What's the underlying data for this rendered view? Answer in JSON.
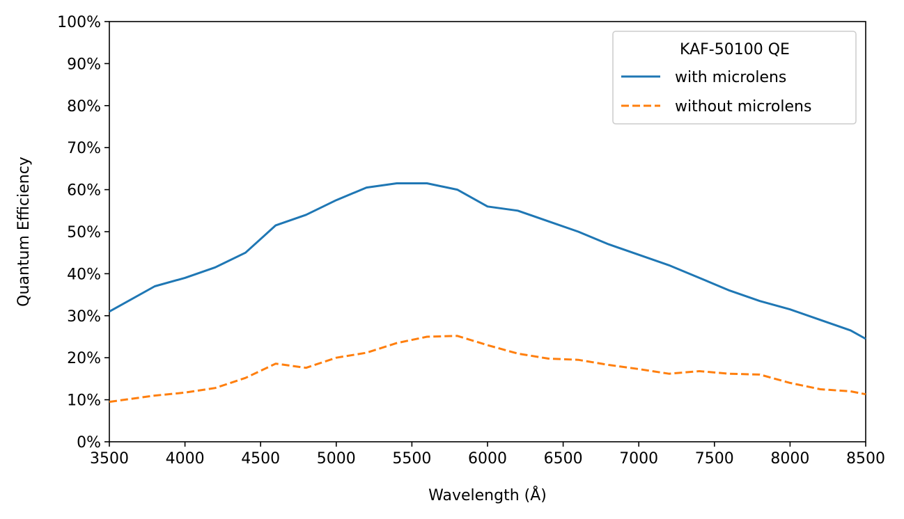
{
  "chart_data": {
    "type": "line",
    "xlabel": "Wavelength (Å)",
    "ylabel": "Quantum Efficiency",
    "xlim": [
      3500,
      8500
    ],
    "ylim": [
      0,
      1
    ],
    "xticks": [
      3500,
      4000,
      4500,
      5000,
      5500,
      6000,
      6500,
      7000,
      7500,
      8000,
      8500
    ],
    "yticks": [
      0,
      0.1,
      0.2,
      0.3,
      0.4,
      0.5,
      0.6,
      0.7,
      0.8,
      0.9,
      1.0
    ],
    "ytick_labels": [
      "0%",
      "10%",
      "20%",
      "30%",
      "40%",
      "50%",
      "60%",
      "70%",
      "80%",
      "90%",
      "100%"
    ],
    "grid": false,
    "legend": {
      "title": "KAF-50100 QE",
      "placement": "top-right"
    },
    "series": [
      {
        "name": "with microlens",
        "color": "#1f77b4",
        "style": "solid",
        "x": [
          3500,
          3800,
          4000,
          4200,
          4400,
          4600,
          4800,
          5000,
          5200,
          5400,
          5600,
          5800,
          6000,
          6200,
          6400,
          6600,
          6800,
          7000,
          7200,
          7400,
          7600,
          7800,
          8000,
          8200,
          8400,
          8500
        ],
        "y": [
          0.31,
          0.37,
          0.39,
          0.415,
          0.45,
          0.515,
          0.54,
          0.575,
          0.605,
          0.615,
          0.615,
          0.6,
          0.56,
          0.55,
          0.525,
          0.5,
          0.47,
          0.445,
          0.42,
          0.39,
          0.36,
          0.335,
          0.315,
          0.29,
          0.265,
          0.245
        ]
      },
      {
        "name": "without microlens",
        "color": "#ff7f0e",
        "style": "dashed",
        "x": [
          3500,
          3800,
          4000,
          4200,
          4400,
          4600,
          4800,
          5000,
          5200,
          5400,
          5600,
          5800,
          6000,
          6200,
          6400,
          6600,
          6800,
          7000,
          7200,
          7400,
          7600,
          7800,
          8000,
          8200,
          8400,
          8500
        ],
        "y": [
          0.095,
          0.11,
          0.117,
          0.128,
          0.152,
          0.186,
          0.176,
          0.2,
          0.212,
          0.235,
          0.25,
          0.252,
          0.23,
          0.21,
          0.198,
          0.195,
          0.183,
          0.173,
          0.162,
          0.168,
          0.162,
          0.16,
          0.14,
          0.125,
          0.12,
          0.113
        ]
      }
    ]
  }
}
